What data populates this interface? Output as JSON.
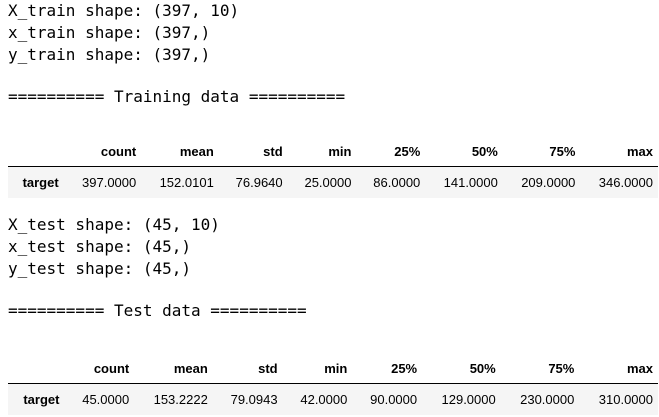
{
  "train": {
    "shape_lines": [
      "X_train shape: (397, 10)",
      "x_train shape: (397,)",
      "y_train shape: (397,)"
    ],
    "banner": "========== Training data ==========",
    "table": {
      "columns": [
        "count",
        "mean",
        "std",
        "min",
        "25%",
        "50%",
        "75%",
        "max"
      ],
      "row_label": "target",
      "values": [
        "397.0000",
        "152.0101",
        "76.9640",
        "25.0000",
        "86.0000",
        "141.0000",
        "209.0000",
        "346.0000"
      ]
    }
  },
  "test": {
    "shape_lines": [
      "X_test shape: (45, 10)",
      "x_test shape: (45,)",
      "y_test shape: (45,)"
    ],
    "banner": "========== Test data ==========",
    "table": {
      "columns": [
        "count",
        "mean",
        "std",
        "min",
        "25%",
        "50%",
        "75%",
        "max"
      ],
      "row_label": "target",
      "values": [
        "45.0000",
        "153.2222",
        "79.0943",
        "42.0000",
        "90.0000",
        "129.0000",
        "230.0000",
        "310.0000"
      ]
    }
  }
}
